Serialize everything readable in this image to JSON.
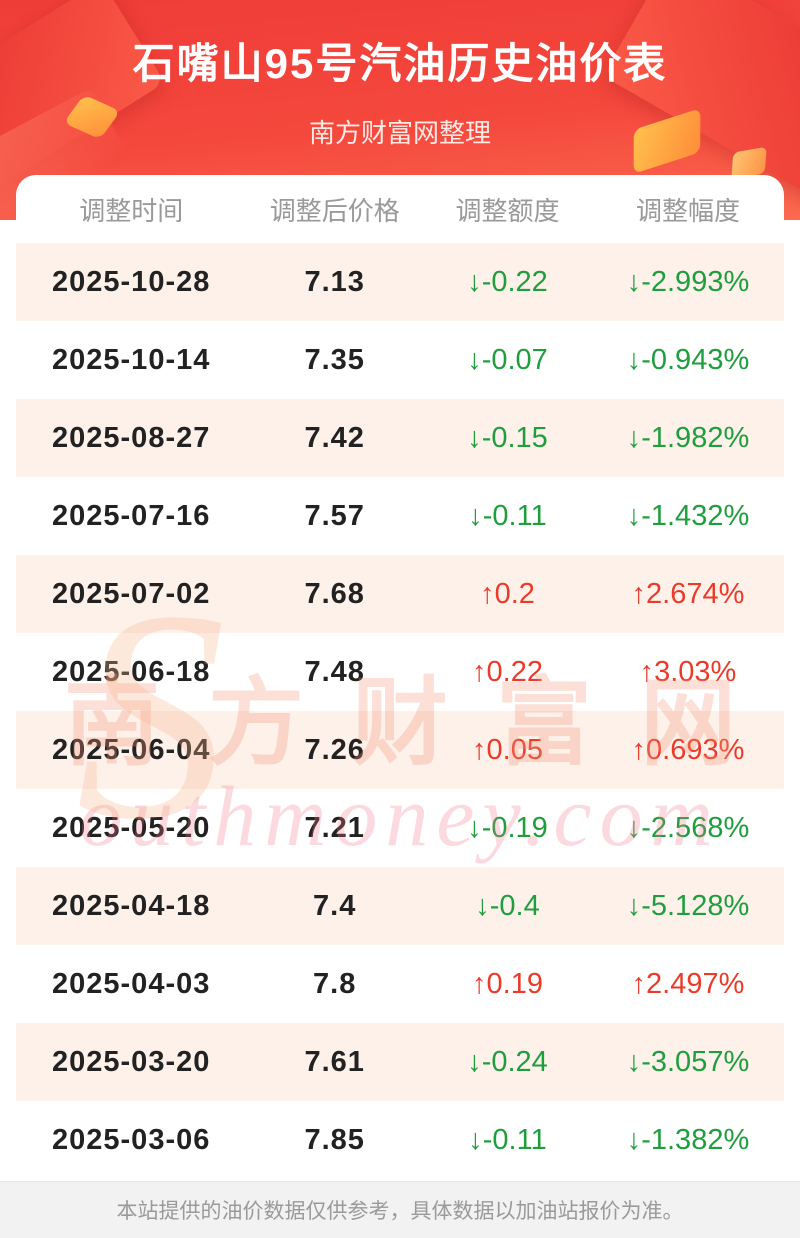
{
  "header": {
    "title": "石嘴山95号汽油历史油价表",
    "subtitle": "南方财富网整理"
  },
  "chart_data": {
    "type": "table",
    "title": "石嘴山95号汽油历史油价表",
    "columns": [
      "调整时间",
      "调整后价格",
      "调整额度",
      "调整幅度"
    ],
    "rows": [
      {
        "date": "2025-10-28",
        "price": "7.13",
        "change": "↓-0.22",
        "percent": "↓-2.993%",
        "direction": "down"
      },
      {
        "date": "2025-10-14",
        "price": "7.35",
        "change": "↓-0.07",
        "percent": "↓-0.943%",
        "direction": "down"
      },
      {
        "date": "2025-08-27",
        "price": "7.42",
        "change": "↓-0.15",
        "percent": "↓-1.982%",
        "direction": "down"
      },
      {
        "date": "2025-07-16",
        "price": "7.57",
        "change": "↓-0.11",
        "percent": "↓-1.432%",
        "direction": "down"
      },
      {
        "date": "2025-07-02",
        "price": "7.68",
        "change": "↑0.2",
        "percent": "↑2.674%",
        "direction": "up"
      },
      {
        "date": "2025-06-18",
        "price": "7.48",
        "change": "↑0.22",
        "percent": "↑3.03%",
        "direction": "up"
      },
      {
        "date": "2025-06-04",
        "price": "7.26",
        "change": "↑0.05",
        "percent": "↑0.693%",
        "direction": "up"
      },
      {
        "date": "2025-05-20",
        "price": "7.21",
        "change": "↓-0.19",
        "percent": "↓-2.568%",
        "direction": "down"
      },
      {
        "date": "2025-04-18",
        "price": "7.4",
        "change": "↓-0.4",
        "percent": "↓-5.128%",
        "direction": "down"
      },
      {
        "date": "2025-04-03",
        "price": "7.8",
        "change": "↑0.19",
        "percent": "↑2.497%",
        "direction": "up"
      },
      {
        "date": "2025-03-20",
        "price": "7.61",
        "change": "↓-0.24",
        "percent": "↓-3.057%",
        "direction": "down"
      },
      {
        "date": "2025-03-06",
        "price": "7.85",
        "change": "↓-0.11",
        "percent": "↓-1.382%",
        "direction": "down"
      }
    ]
  },
  "watermark": {
    "cn": "南方财富网",
    "en": "outhmoney.com",
    "initial": "S"
  },
  "footer": {
    "note": "本站提供的油价数据仅供参考，具体数据以加油站报价为准。"
  },
  "colors": {
    "banner_red": "#f4483d",
    "up_red": "#ea3b2a",
    "down_green": "#1f9e3e",
    "row_alt_bg": "#fdf1ea"
  }
}
